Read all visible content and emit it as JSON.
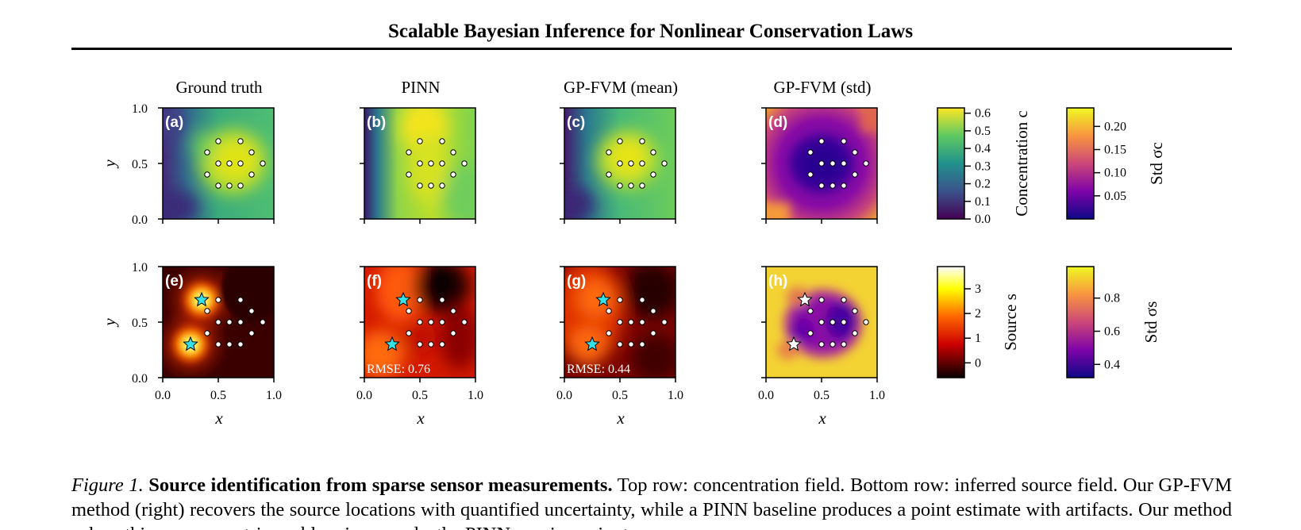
{
  "header": {
    "running_title": "Scalable Bayesian Inference for Nonlinear Conservation Laws"
  },
  "panels": {
    "column_titles": [
      "Ground truth",
      "PINN",
      "GP-FVM (mean)",
      "GP-FVM (std)"
    ],
    "letters": [
      "(a)",
      "(b)",
      "(c)",
      "(d)",
      "(e)",
      "(f)",
      "(g)",
      "(h)"
    ],
    "rmse": {
      "f": "RMSE: 0.76",
      "g": "RMSE: 0.44"
    },
    "ylabel": "y",
    "xlabel": "x",
    "x_ticks": [
      "0.0",
      "0.5",
      "1.0"
    ],
    "y_ticks": [
      "0.0",
      "0.5",
      "1.0"
    ],
    "sensor_points": [
      [
        0.4,
        0.6
      ],
      [
        0.5,
        0.7
      ],
      [
        0.7,
        0.7
      ],
      [
        0.8,
        0.6
      ],
      [
        0.9,
        0.5
      ],
      [
        0.8,
        0.4
      ],
      [
        0.7,
        0.3
      ],
      [
        0.6,
        0.3
      ],
      [
        0.5,
        0.3
      ],
      [
        0.4,
        0.4
      ],
      [
        0.5,
        0.5
      ],
      [
        0.6,
        0.5
      ],
      [
        0.7,
        0.5
      ]
    ],
    "true_sources": [
      [
        0.35,
        0.7
      ],
      [
        0.25,
        0.3
      ]
    ],
    "colormaps": {
      "concentration": "viridis",
      "source": "hot",
      "std": "plasma"
    }
  },
  "colorbars": [
    {
      "label": "Concentration c",
      "ticks": [
        "0.0",
        "0.1",
        "0.2",
        "0.3",
        "0.4",
        "0.5",
        "0.6"
      ],
      "range": [
        0.0,
        0.63
      ]
    },
    {
      "label": "Std σc",
      "ticks": [
        "0.05",
        "0.10",
        "0.15",
        "0.20"
      ],
      "range": [
        0.0,
        0.24
      ]
    },
    {
      "label": "Source s",
      "ticks": [
        "0",
        "1",
        "2",
        "3"
      ],
      "range": [
        -0.6,
        3.9
      ]
    },
    {
      "label": "Std σs",
      "ticks": [
        "0.4",
        "0.6",
        "0.8"
      ],
      "range": [
        0.32,
        0.99
      ]
    }
  ],
  "caption": {
    "label": "Figure 1.",
    "bold": "Source identification from sparse sensor measurements.",
    "text": "Top row: concentration field. Bottom row: inferred source field. Our GP-FVM method (right) recovers the source locations with quantified uncertainty, while a PINN baseline produces a point estimate with artifacts. Our method solves this nonparametric problem in seconds; the PINN requires minutes."
  }
}
